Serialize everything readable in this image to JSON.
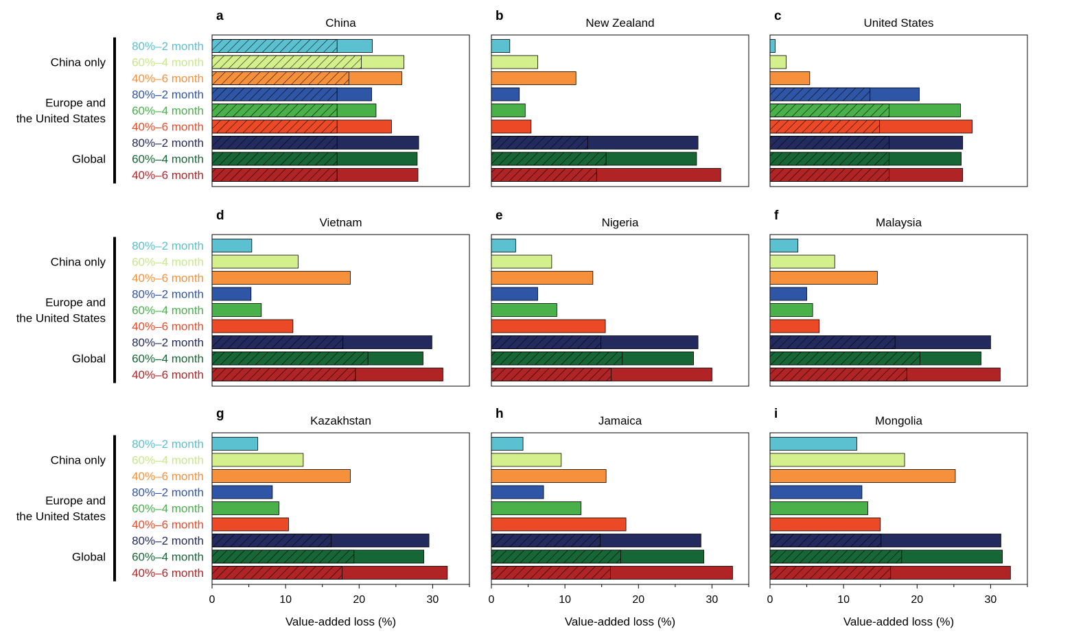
{
  "figure": {
    "xlabel": "Value-added loss (%)",
    "x_ticks": [
      0,
      10,
      20,
      30
    ],
    "xlim": [
      0,
      35
    ],
    "row_labels": [
      "80%–2 month",
      "60%–4 month",
      "40%–6 month",
      "80%–2 month",
      "60%–4 month",
      "40%–6 month",
      "80%–2 month",
      "60%–4 month",
      "40%–6 month"
    ],
    "row_colors": [
      "#5bc0cf",
      "#d4f08c",
      "#f7903a",
      "#2f55a6",
      "#49b04a",
      "#ec4a27",
      "#232b5e",
      "#176635",
      "#b02426"
    ],
    "row_label_colors": [
      "#5bc0cf",
      "#c8e88a",
      "#f7903a",
      "#2f55a6",
      "#49b04a",
      "#ec4a27",
      "#232b5e",
      "#176635",
      "#b02426"
    ],
    "groups": [
      {
        "label_lines": [
          "China only"
        ]
      },
      {
        "label_lines": [
          "Europe and",
          "the United States"
        ]
      },
      {
        "label_lines": [
          "Global"
        ]
      }
    ]
  },
  "chart_data": [
    {
      "type": "bar",
      "panel": "a",
      "title": "China",
      "values": [
        21.8,
        26.1,
        25.8,
        21.7,
        22.3,
        24.4,
        28.1,
        27.9,
        28.0
      ],
      "hatched": [
        17.0,
        20.3,
        18.6,
        17.0,
        17.0,
        17.0,
        17.0,
        17.0,
        17.0
      ]
    },
    {
      "type": "bar",
      "panel": "b",
      "title": "New Zealand",
      "values": [
        2.5,
        6.3,
        11.5,
        3.8,
        4.6,
        5.4,
        28.1,
        27.9,
        31.2
      ],
      "hatched": [
        null,
        null,
        null,
        null,
        null,
        null,
        13.1,
        15.6,
        14.3
      ]
    },
    {
      "type": "bar",
      "panel": "c",
      "title": "United States",
      "values": [
        0.7,
        2.2,
        5.4,
        20.3,
        25.9,
        27.5,
        26.2,
        26.0,
        26.2
      ],
      "hatched": [
        null,
        null,
        null,
        13.6,
        16.2,
        14.9,
        16.2,
        16.2,
        16.2
      ]
    },
    {
      "type": "bar",
      "panel": "d",
      "title": "Vietnam",
      "values": [
        5.4,
        11.7,
        18.8,
        5.3,
        6.7,
        11.0,
        29.9,
        28.7,
        31.4
      ],
      "hatched": [
        null,
        null,
        null,
        null,
        null,
        null,
        17.8,
        21.2,
        19.5
      ]
    },
    {
      "type": "bar",
      "panel": "e",
      "title": "Nigeria",
      "values": [
        3.3,
        8.2,
        13.8,
        6.3,
        8.9,
        15.5,
        28.1,
        27.5,
        30.0
      ],
      "hatched": [
        null,
        null,
        null,
        null,
        null,
        null,
        14.9,
        17.8,
        16.3
      ]
    },
    {
      "type": "bar",
      "panel": "f",
      "title": "Malaysia",
      "values": [
        3.8,
        8.8,
        14.6,
        5.0,
        5.8,
        6.7,
        30.0,
        28.7,
        31.3
      ],
      "hatched": [
        null,
        null,
        null,
        null,
        null,
        null,
        17.0,
        20.4,
        18.6
      ]
    },
    {
      "type": "bar",
      "panel": "g",
      "title": "Kazakhstan",
      "values": [
        6.2,
        12.4,
        18.8,
        8.2,
        9.1,
        10.4,
        29.5,
        28.8,
        32.0
      ],
      "hatched": [
        null,
        null,
        null,
        null,
        null,
        null,
        16.2,
        19.3,
        17.7
      ]
    },
    {
      "type": "bar",
      "panel": "h",
      "title": "Jamaica",
      "values": [
        4.3,
        9.5,
        15.6,
        7.1,
        12.2,
        18.3,
        28.5,
        28.9,
        32.8
      ],
      "hatched": [
        null,
        null,
        null,
        null,
        null,
        null,
        14.8,
        17.6,
        16.2
      ]
    },
    {
      "type": "bar",
      "panel": "i",
      "title": "Mongolia",
      "values": [
        11.8,
        18.3,
        25.2,
        12.5,
        13.3,
        15.0,
        31.4,
        31.6,
        32.7
      ],
      "hatched": [
        null,
        null,
        null,
        null,
        null,
        null,
        15.1,
        17.9,
        16.4
      ]
    }
  ]
}
